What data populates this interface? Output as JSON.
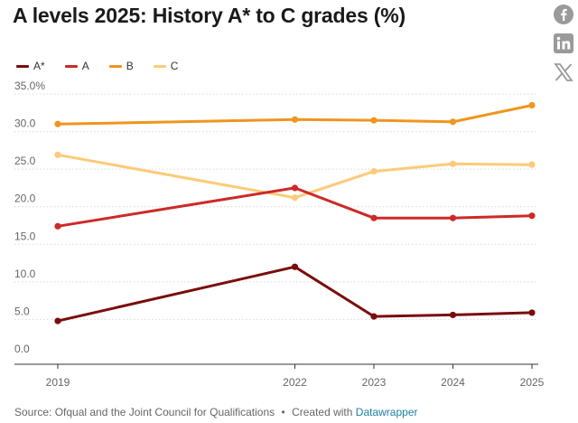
{
  "title": "A levels 2025: History A* to C grades (%)",
  "footer": {
    "source": "Source: Ofqual and the Joint Council for Qualifications",
    "separator": "•",
    "created": "Created with",
    "tool": "Datawrapper"
  },
  "share_icons": [
    "facebook-icon",
    "linkedin-icon",
    "x-icon"
  ],
  "colors": {
    "A*": "#7b0c0c",
    "A": "#cc2a28",
    "B": "#f0951f",
    "C": "#fccb78"
  },
  "chart_data": {
    "type": "line",
    "x": [
      2019,
      2022,
      2023,
      2024,
      2025
    ],
    "xlabels": [
      "2019",
      "2022",
      "2023",
      "2024",
      "2025"
    ],
    "series": [
      {
        "name": "A*",
        "values": [
          4.8,
          12.0,
          5.4,
          5.6,
          5.9
        ]
      },
      {
        "name": "A",
        "values": [
          17.4,
          22.5,
          18.5,
          18.5,
          18.8
        ]
      },
      {
        "name": "B",
        "values": [
          31.0,
          31.6,
          31.5,
          31.3,
          33.5
        ]
      },
      {
        "name": "C",
        "values": [
          26.9,
          21.2,
          24.7,
          25.7,
          25.6
        ]
      }
    ],
    "ylim": [
      0,
      35
    ],
    "yticks": [
      "0.0",
      "5.0",
      "10.0",
      "15.0",
      "20.0",
      "25.0",
      "30.0",
      "35.0%"
    ],
    "ytick_values": [
      0,
      5,
      10,
      15,
      20,
      25,
      30,
      35
    ],
    "grid": true,
    "legend": "top-left",
    "xlabel": "",
    "ylabel": ""
  }
}
